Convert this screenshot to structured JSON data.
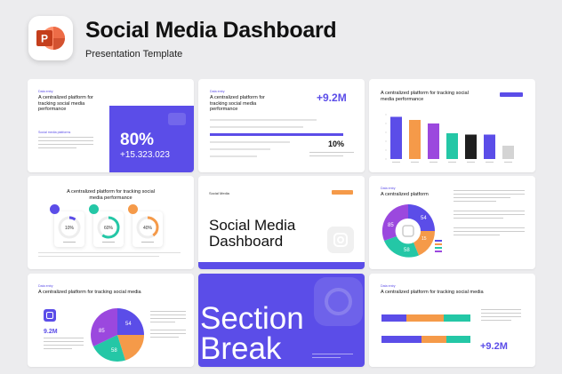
{
  "header": {
    "app_icon": "powerpoint-icon",
    "app_letter": "P",
    "title": "Social Media Dashboard",
    "subtitle": "Presentation Template"
  },
  "colors": {
    "accent": "#5b4de8",
    "orange": "#f59a49",
    "purple": "#9b48de",
    "teal": "#24c7a6",
    "dark": "#1f1f1f",
    "grey": "#d4d4d4",
    "background": "#ececee"
  },
  "slide1": {
    "eyebrow": "Data entry",
    "heading": "A centralized platform for tracking social media performance",
    "note_title": "Social media platforms",
    "percent": "80%",
    "number": "+15.323.023"
  },
  "slide2": {
    "eyebrow": "Data entry",
    "heading": "A centralized platform for tracking social media performance",
    "big": "+9.2M",
    "percent": "10%"
  },
  "slide3": {
    "heading": "A centralized platform for tracking social media performance",
    "chart_data": {
      "type": "bar",
      "values": [
        95,
        88,
        80,
        58,
        55,
        55,
        30
      ],
      "ylim": [
        0,
        100
      ]
    }
  },
  "slide4": {
    "heading": "A centralized platform for tracking social media performance",
    "gauges": [
      {
        "icon": "facebook-icon",
        "value": "10%",
        "fraction": 0.1
      },
      {
        "icon": "youtube-icon",
        "value": "60%",
        "fraction": 0.6
      },
      {
        "icon": "instagram-icon",
        "value": "40%",
        "fraction": 0.4
      }
    ]
  },
  "slide5": {
    "tag": "Social Media",
    "title_line1": "Social Media",
    "title_line2": "Dashboard",
    "icon": "instagram-icon"
  },
  "slide6": {
    "eyebrow": "Data entry",
    "heading": "A centralized platform",
    "donut_labels": [
      "54",
      "15",
      "58",
      "85"
    ]
  },
  "slide7": {
    "eyebrow": "Data entry",
    "heading": "A centralized platform for tracking social media",
    "stat": "9.2M",
    "pie_labels": [
      "54",
      "58",
      "85"
    ]
  },
  "slide8": {
    "line1": "Section",
    "line2": "Break",
    "icon": "instagram-icon"
  },
  "slide9": {
    "eyebrow": "Data entry",
    "heading": "A centralized platform for tracking social media",
    "big": "+9.2M"
  }
}
